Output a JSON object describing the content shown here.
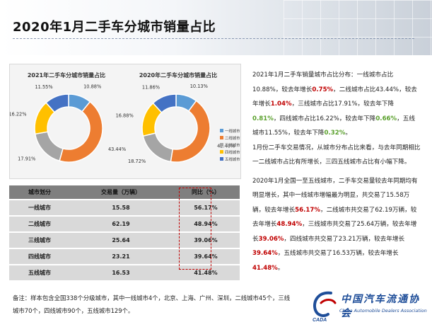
{
  "page": {
    "title": "2020年1月二手车分城市销量占比"
  },
  "chart_data": [
    {
      "type": "pie",
      "title": "2021年二手车分城市销量占比",
      "categories": [
        "一线城市",
        "二线城市",
        "三线城市",
        "四线城市",
        "五线城市"
      ],
      "values": [
        10.88,
        43.44,
        17.91,
        16.22,
        11.55
      ],
      "labels": [
        "10.88%",
        "43.44%",
        "17.91%",
        "16.22%",
        "11.55%"
      ]
    },
    {
      "type": "pie",
      "title": "2020年二手车分城市销量占比",
      "categories": [
        "一线城市",
        "二线城市",
        "三线城市",
        "四线城市",
        "五线城市"
      ],
      "values": [
        10.13,
        42.4,
        18.72,
        16.88,
        11.86
      ],
      "labels": [
        "10.13%",
        "42.40%",
        "18.72%",
        "16.88%",
        "11.86%"
      ],
      "legend": "right"
    }
  ],
  "colors": [
    "#5b9bd5",
    "#ed7d31",
    "#a5a5a5",
    "#ffc000",
    "#4472c4"
  ],
  "table": {
    "headers": [
      "城市划分",
      "交易量（万辆）",
      "同比（%）"
    ],
    "rows": [
      [
        "一线城市",
        "15.58",
        "56.17%"
      ],
      [
        "二线城市",
        "62.19",
        "48.94%"
      ],
      [
        "三线城市",
        "25.64",
        "39.06%"
      ],
      [
        "四线城市",
        "23.21",
        "39.64%"
      ],
      [
        "五线城市",
        "16.53",
        "41.48%"
      ]
    ]
  },
  "analysis": {
    "p1": [
      {
        "t": "2021年1月二手车销量城市占比分布：一线城市占比10.88%，较去年增长",
        "c": ""
      },
      {
        "t": "0.75%",
        "c": "red"
      },
      {
        "t": "，二线城市占比43.44%，较去年增长",
        "c": ""
      },
      {
        "t": "1.04%",
        "c": "red"
      },
      {
        "t": "，三线城市占比17.91%，较去年下降",
        "c": ""
      },
      {
        "t": "0.81%",
        "c": "green"
      },
      {
        "t": "，四线城市占比16.22%，较去年下降",
        "c": ""
      },
      {
        "t": "0.66%",
        "c": "green"
      },
      {
        "t": "，五线城市11.55%，较去年下降",
        "c": ""
      },
      {
        "t": "0.32%",
        "c": "green"
      },
      {
        "t": "。",
        "c": ""
      }
    ],
    "p2": [
      {
        "t": "1月份二手车交易情况，从城市分布占比来看，与去年同期相比一二线城市占比有所增长，三四五线城市占比有小幅下降。",
        "c": ""
      }
    ],
    "p3": [
      {
        "t": "2020年1月全国一至五线城市，二手车交易量较去年同期均有明显增长，其中一线城市增幅最为明显，共交易了15.58万辆，较去年增长",
        "c": ""
      },
      {
        "t": "56.17%",
        "c": "red"
      },
      {
        "t": "，二线城市共交易了62.19万辆，较去年增长",
        "c": ""
      },
      {
        "t": "48.94%",
        "c": "red"
      },
      {
        "t": "，三线城市共交易了25.64万辆，较去年增长",
        "c": ""
      },
      {
        "t": "39.06%",
        "c": "red"
      },
      {
        "t": "，四线城市共交易了23.21万辆，较去年增长",
        "c": ""
      },
      {
        "t": "39.64%",
        "c": "red"
      },
      {
        "t": "，五线城市共交易了16.53万辆，较去年增长",
        "c": ""
      },
      {
        "t": "41.48%",
        "c": "red"
      },
      {
        "t": "。",
        "c": ""
      }
    ]
  },
  "note": "备注：样本包含全国338个分级城市，其中一线城市4个，北京、上海、广州、深圳，二线城市45个，三线城市70个，四线城市90个，五线城市129个。",
  "logo": {
    "cn": "中国汽车流通协会",
    "en": "China Automobile Dealers Association",
    "abbr": "CADA"
  }
}
